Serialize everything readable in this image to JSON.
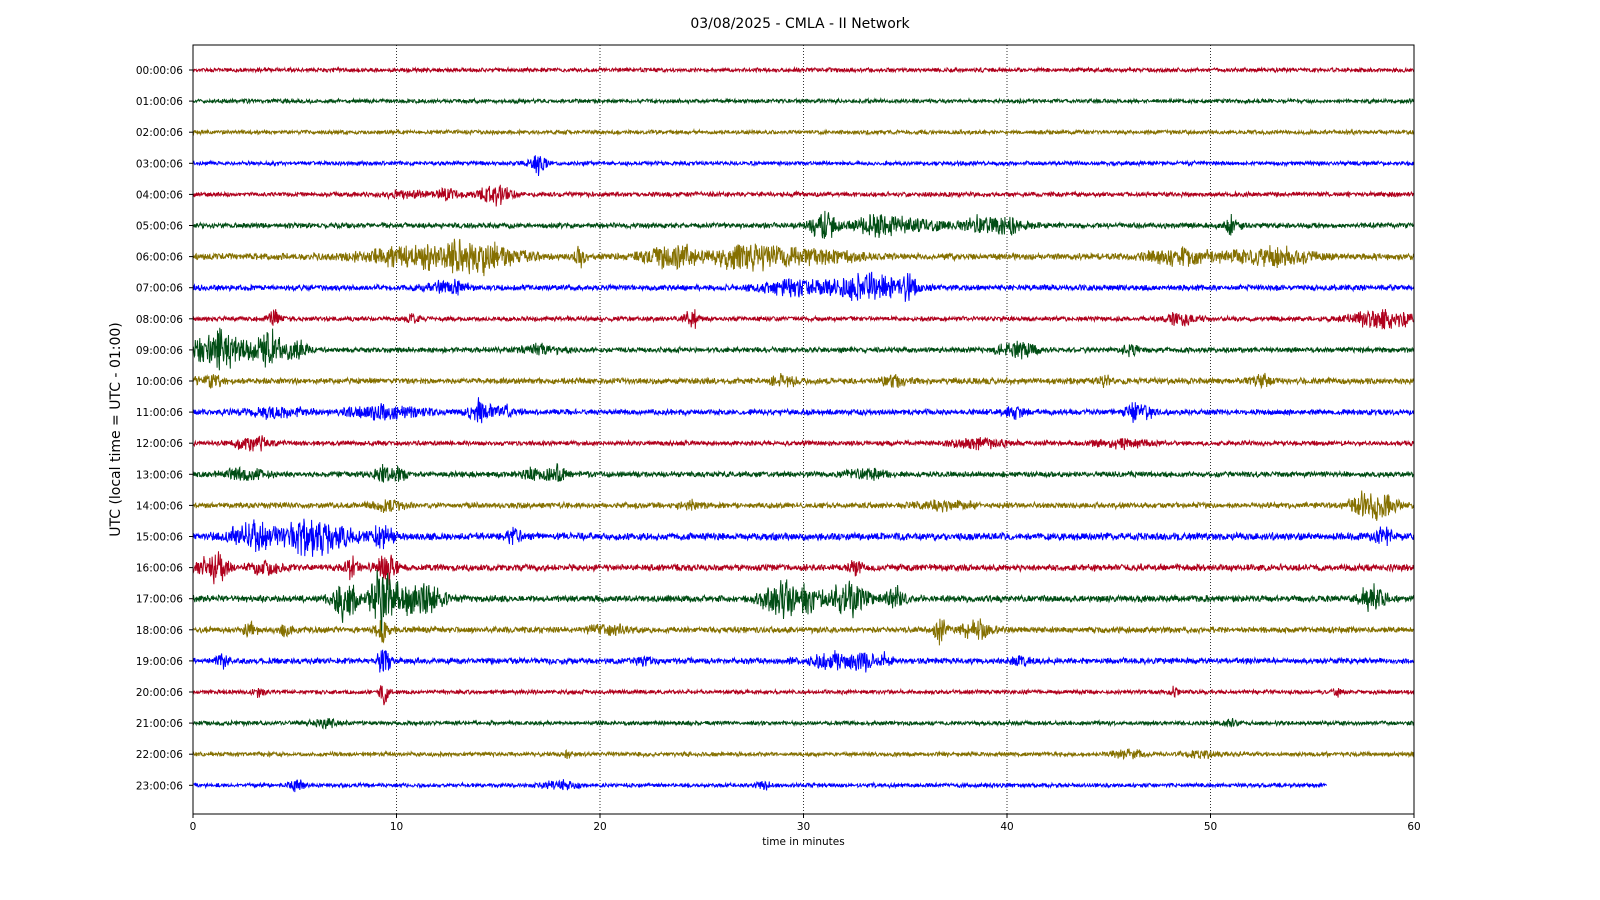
{
  "chart_data": {
    "type": "line",
    "title": "03/08/2025 - CMLA - II Network",
    "xlabel": "time in minutes",
    "ylabel": "UTC (local time = UTC - 01:00)",
    "xlim": [
      0,
      60
    ],
    "x_ticks": [
      0,
      10,
      20,
      30,
      40,
      50,
      60
    ],
    "grid": "vertical dotted lines at x ticks",
    "row_labels": [
      "00:00:06",
      "01:00:06",
      "02:00:06",
      "03:00:06",
      "04:00:06",
      "05:00:06",
      "06:00:06",
      "07:00:06",
      "08:00:06",
      "09:00:06",
      "10:00:06",
      "11:00:06",
      "12:00:06",
      "13:00:06",
      "14:00:06",
      "15:00:06",
      "16:00:06",
      "17:00:06",
      "18:00:06",
      "19:00:06",
      "20:00:06",
      "21:00:06",
      "22:00:06",
      "23:00:06"
    ],
    "colors": [
      "#b0001c",
      "#004d14",
      "#857000",
      "#0000ff"
    ],
    "series": [
      {
        "label": "00:00:06",
        "end_minute": 60,
        "noise": 0.22,
        "events": []
      },
      {
        "label": "01:00:06",
        "end_minute": 60,
        "noise": 0.22,
        "events": []
      },
      {
        "label": "02:00:06",
        "end_minute": 60,
        "noise": 0.22,
        "events": []
      },
      {
        "label": "03:00:06",
        "end_minute": 60,
        "noise": 0.22,
        "events": [
          [
            17.0,
            1.2,
            0.4
          ]
        ]
      },
      {
        "label": "04:00:06",
        "end_minute": 60,
        "noise": 0.25,
        "events": [
          [
            10.5,
            0.3,
            1.2
          ],
          [
            12.5,
            0.5,
            0.6
          ],
          [
            14.8,
            1.0,
            0.8
          ]
        ]
      },
      {
        "label": "05:00:06",
        "end_minute": 60,
        "noise": 0.28,
        "events": [
          [
            31.0,
            1.5,
            0.6
          ],
          [
            33.5,
            1.0,
            1.0
          ],
          [
            35.5,
            0.6,
            1.5
          ],
          [
            38.5,
            0.7,
            0.8
          ],
          [
            40.0,
            0.8,
            1.0
          ],
          [
            51.0,
            0.9,
            0.4
          ]
        ]
      },
      {
        "label": "06:00:06",
        "end_minute": 60,
        "noise": 0.35,
        "events": [
          [
            11.0,
            1.0,
            2.5
          ],
          [
            14.0,
            1.4,
            2.0
          ],
          [
            19.0,
            1.0,
            0.3
          ],
          [
            23.5,
            1.3,
            1.2
          ],
          [
            27.0,
            1.2,
            1.5
          ],
          [
            30.0,
            0.7,
            2.5
          ],
          [
            48.5,
            0.8,
            1.5
          ],
          [
            53.0,
            0.8,
            2.0
          ]
        ]
      },
      {
        "label": "07:00:06",
        "end_minute": 60,
        "noise": 0.3,
        "events": [
          [
            12.5,
            0.6,
            1.0
          ],
          [
            30.0,
            0.8,
            2.0
          ],
          [
            33.5,
            1.4,
            1.5
          ],
          [
            35.2,
            1.6,
            0.3
          ]
        ]
      },
      {
        "label": "08:00:06",
        "end_minute": 60,
        "noise": 0.25,
        "events": [
          [
            4.0,
            0.9,
            0.3
          ],
          [
            10.8,
            0.5,
            0.3
          ],
          [
            24.5,
            1.1,
            0.3
          ],
          [
            48.5,
            0.6,
            0.8
          ],
          [
            58.5,
            1.0,
            1.5
          ]
        ]
      },
      {
        "label": "09:00:06",
        "end_minute": 60,
        "noise": 0.28,
        "events": [
          [
            1.3,
            2.0,
            1.2
          ],
          [
            3.8,
            1.8,
            0.8
          ],
          [
            5.2,
            1.0,
            0.4
          ],
          [
            17.0,
            0.5,
            1.0
          ],
          [
            40.5,
            0.7,
            1.0
          ],
          [
            46.0,
            0.5,
            0.4
          ]
        ]
      },
      {
        "label": "10:00:06",
        "end_minute": 60,
        "noise": 0.32,
        "events": [
          [
            0.8,
            0.5,
            0.8
          ],
          [
            29.0,
            0.6,
            0.6
          ],
          [
            34.5,
            0.5,
            0.6
          ],
          [
            44.8,
            0.6,
            0.3
          ],
          [
            52.5,
            0.6,
            0.4
          ]
        ]
      },
      {
        "label": "11:00:06",
        "end_minute": 60,
        "noise": 0.3,
        "events": [
          [
            4.0,
            0.5,
            1.5
          ],
          [
            9.5,
            0.6,
            2.0
          ],
          [
            14.2,
            1.2,
            0.6
          ],
          [
            15.5,
            0.6,
            0.5
          ],
          [
            40.5,
            0.6,
            0.5
          ],
          [
            46.5,
            1.0,
            0.6
          ]
        ]
      },
      {
        "label": "12:00:06",
        "end_minute": 60,
        "noise": 0.25,
        "events": [
          [
            3.0,
            0.7,
            0.9
          ],
          [
            38.5,
            0.5,
            1.5
          ],
          [
            45.5,
            0.5,
            1.2
          ]
        ]
      },
      {
        "label": "13:00:06",
        "end_minute": 60,
        "noise": 0.3,
        "events": [
          [
            2.5,
            0.6,
            1.0
          ],
          [
            9.3,
            1.0,
            0.4
          ],
          [
            10.2,
            0.7,
            0.3
          ],
          [
            17.0,
            0.6,
            0.8
          ],
          [
            18.0,
            0.9,
            0.3
          ],
          [
            33.0,
            0.5,
            1.0
          ]
        ]
      },
      {
        "label": "14:00:06",
        "end_minute": 60,
        "noise": 0.3,
        "events": [
          [
            9.5,
            0.5,
            0.8
          ],
          [
            24.5,
            0.4,
            0.5
          ],
          [
            37.0,
            0.4,
            1.5
          ],
          [
            58.0,
            1.6,
            1.0
          ]
        ]
      },
      {
        "label": "15:00:06",
        "end_minute": 60,
        "noise": 0.4,
        "events": [
          [
            3.0,
            1.4,
            1.2
          ],
          [
            5.5,
            1.2,
            1.0
          ],
          [
            6.5,
            1.0,
            1.5
          ],
          [
            9.3,
            1.2,
            0.5
          ],
          [
            15.8,
            0.8,
            0.3
          ],
          [
            58.5,
            0.9,
            0.4
          ]
        ]
      },
      {
        "label": "16:00:06",
        "end_minute": 60,
        "noise": 0.35,
        "events": [
          [
            0.8,
            1.0,
            0.8
          ],
          [
            1.3,
            0.9,
            0.3
          ],
          [
            3.5,
            0.6,
            0.8
          ],
          [
            7.8,
            1.2,
            0.3
          ],
          [
            9.5,
            1.5,
            0.5
          ],
          [
            32.5,
            0.8,
            0.3
          ]
        ]
      },
      {
        "label": "17:00:06",
        "end_minute": 60,
        "noise": 0.35,
        "events": [
          [
            7.5,
            2.2,
            0.6
          ],
          [
            9.2,
            3.5,
            0.5
          ],
          [
            10.5,
            1.5,
            1.0
          ],
          [
            11.8,
            1.0,
            0.8
          ],
          [
            28.8,
            1.5,
            1.0
          ],
          [
            30.0,
            1.2,
            0.8
          ],
          [
            32.2,
            1.8,
            0.9
          ],
          [
            34.5,
            1.0,
            0.6
          ],
          [
            58.0,
            1.5,
            0.6
          ]
        ]
      },
      {
        "label": "18:00:06",
        "end_minute": 60,
        "noise": 0.32,
        "events": [
          [
            2.8,
            0.7,
            0.4
          ],
          [
            4.5,
            0.5,
            0.4
          ],
          [
            9.3,
            1.5,
            0.3
          ],
          [
            20.5,
            0.5,
            1.0
          ],
          [
            36.7,
            1.2,
            0.3
          ],
          [
            38.5,
            0.8,
            0.8
          ]
        ]
      },
      {
        "label": "19:00:06",
        "end_minute": 60,
        "noise": 0.32,
        "events": [
          [
            1.5,
            0.7,
            0.3
          ],
          [
            9.4,
            1.6,
            0.3
          ],
          [
            22.0,
            0.5,
            0.5
          ],
          [
            31.5,
            0.8,
            1.2
          ],
          [
            33.0,
            0.9,
            0.4
          ],
          [
            34.0,
            0.8,
            0.3
          ],
          [
            40.5,
            0.4,
            0.5
          ]
        ]
      },
      {
        "label": "20:00:06",
        "end_minute": 60,
        "noise": 0.22,
        "events": [
          [
            3.3,
            0.5,
            0.3
          ],
          [
            9.4,
            1.8,
            0.2
          ],
          [
            48.2,
            0.5,
            0.2
          ],
          [
            56.2,
            0.5,
            0.2
          ]
        ]
      },
      {
        "label": "21:00:06",
        "end_minute": 60,
        "noise": 0.22,
        "events": [
          [
            6.5,
            0.4,
            0.8
          ],
          [
            51.0,
            0.4,
            0.3
          ]
        ]
      },
      {
        "label": "22:00:06",
        "end_minute": 60,
        "noise": 0.22,
        "events": [
          [
            18.3,
            0.4,
            0.3
          ],
          [
            46.0,
            0.4,
            0.8
          ],
          [
            49.5,
            0.4,
            0.8
          ]
        ]
      },
      {
        "label": "23:00:06",
        "end_minute": 55.7,
        "noise": 0.22,
        "events": [
          [
            5.1,
            0.6,
            0.3
          ],
          [
            18.0,
            0.4,
            0.8
          ],
          [
            28.0,
            0.5,
            0.3
          ]
        ]
      }
    ]
  }
}
